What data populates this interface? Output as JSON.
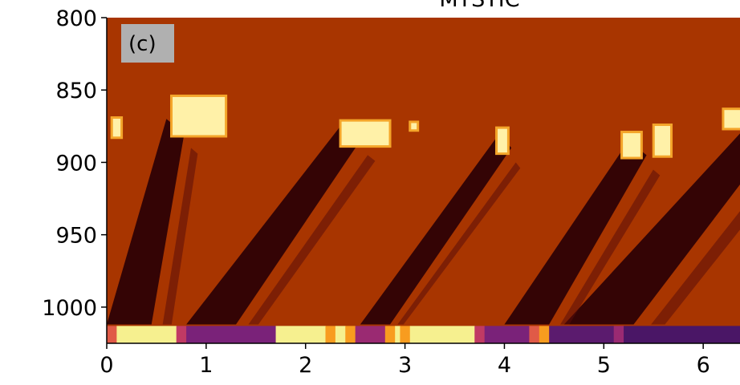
{
  "chart_data": {
    "type": "heatmap",
    "title": "MYSTIC",
    "panel_label": "(c)",
    "xlabel": "",
    "ylabel": "",
    "xlim": [
      0,
      6.37
    ],
    "ylim": [
      1025,
      800
    ],
    "y_inverted": true,
    "x_ticks": [
      "0",
      "1",
      "2",
      "3",
      "4",
      "5",
      "6"
    ],
    "y_ticks": [
      "800",
      "850",
      "900",
      "950",
      "1000"
    ],
    "colormap": "inferno",
    "background_color": "#a83500",
    "dark_color": "#2a0005",
    "bright_color": "#fff1a8",
    "descending_dark_bands": [
      {
        "x_start": 0.0,
        "x_end": 0.6,
        "top": 870,
        "width": 0.45
      },
      {
        "x_start": 0.8,
        "x_end": 2.35,
        "top": 875,
        "width": 0.5
      },
      {
        "x_start": 2.55,
        "x_end": 3.95,
        "top": 880,
        "width": 0.3
      },
      {
        "x_start": 4.0,
        "x_end": 5.25,
        "top": 885,
        "width": 0.45
      },
      {
        "x_start": 4.6,
        "x_end": 6.37,
        "top": 880,
        "width": 0.7
      }
    ],
    "bright_caps": [
      {
        "x": 0.05,
        "y": 876,
        "w": 0.1,
        "h": 14
      },
      {
        "x": 0.65,
        "y": 868,
        "w": 0.55,
        "h": 28
      },
      {
        "x": 2.35,
        "y": 880,
        "w": 0.5,
        "h": 18
      },
      {
        "x": 3.05,
        "y": 875,
        "w": 0.08,
        "h": 6
      },
      {
        "x": 3.92,
        "y": 885,
        "w": 0.12,
        "h": 18
      },
      {
        "x": 5.18,
        "y": 888,
        "w": 0.2,
        "h": 18
      },
      {
        "x": 5.5,
        "y": 885,
        "w": 0.18,
        "h": 22
      },
      {
        "x": 6.2,
        "y": 870,
        "w": 0.25,
        "h": 14
      }
    ],
    "bottom_strip": [
      {
        "x0": 0.0,
        "x1": 0.1,
        "color": "#e05a47"
      },
      {
        "x0": 0.1,
        "x1": 0.7,
        "color": "#f6f08f"
      },
      {
        "x0": 0.7,
        "x1": 0.8,
        "color": "#c13a64"
      },
      {
        "x0": 0.8,
        "x1": 1.7,
        "color": "#7a2279"
      },
      {
        "x0": 1.7,
        "x1": 2.2,
        "color": "#f6f08f"
      },
      {
        "x0": 2.2,
        "x1": 2.3,
        "color": "#f89c1f"
      },
      {
        "x0": 2.3,
        "x1": 2.4,
        "color": "#f6f08f"
      },
      {
        "x0": 2.4,
        "x1": 2.5,
        "color": "#f89c1f"
      },
      {
        "x0": 2.5,
        "x1": 2.8,
        "color": "#9a2a72"
      },
      {
        "x0": 2.8,
        "x1": 2.9,
        "color": "#f89c1f"
      },
      {
        "x0": 2.9,
        "x1": 2.95,
        "color": "#f6f08f"
      },
      {
        "x0": 2.95,
        "x1": 3.05,
        "color": "#f89c1f"
      },
      {
        "x0": 3.05,
        "x1": 3.7,
        "color": "#f6f08f"
      },
      {
        "x0": 3.7,
        "x1": 3.8,
        "color": "#c13a64"
      },
      {
        "x0": 3.8,
        "x1": 4.25,
        "color": "#7a2279"
      },
      {
        "x0": 4.25,
        "x1": 4.35,
        "color": "#e05a47"
      },
      {
        "x0": 4.35,
        "x1": 4.45,
        "color": "#f89c1f"
      },
      {
        "x0": 4.45,
        "x1": 5.1,
        "color": "#5b1b6e"
      },
      {
        "x0": 5.1,
        "x1": 5.2,
        "color": "#9a2a72"
      },
      {
        "x0": 5.2,
        "x1": 6.37,
        "color": "#4a1666"
      }
    ]
  }
}
